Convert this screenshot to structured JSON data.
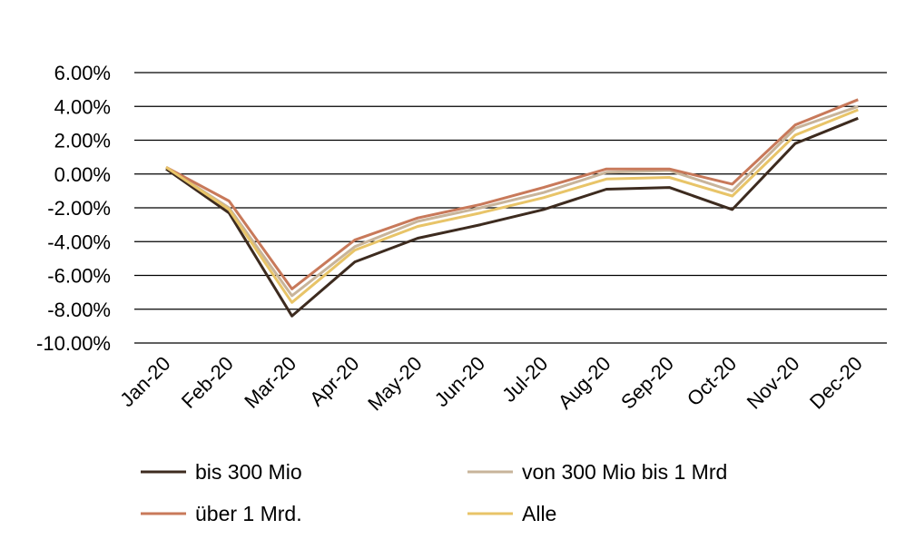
{
  "chart_data": {
    "type": "line",
    "categories": [
      "Jan-20",
      "Feb-20",
      "Mar-20",
      "Apr-20",
      "May-20",
      "Jun-20",
      "Jul-20",
      "Aug-20",
      "Sep-20",
      "Oct-20",
      "Nov-20",
      "Dec-20"
    ],
    "y_ticks": [
      6,
      4,
      2,
      0,
      -2,
      -4,
      -6,
      -8,
      -10
    ],
    "y_tick_labels": [
      "6.00%",
      "4.00%",
      "2.00%",
      "0.00%",
      "-2.00%",
      "-4.00%",
      "-6.00%",
      "-8.00%",
      "-10.00%"
    ],
    "ylim": [
      -10,
      6
    ],
    "grid": true,
    "legend_position": "bottom",
    "series": [
      {
        "name": "bis 300 Mio",
        "color": "#3d2b1f",
        "values": [
          0.3,
          -2.3,
          -8.4,
          -5.2,
          -3.8,
          -3.0,
          -2.1,
          -0.9,
          -0.8,
          -2.1,
          1.8,
          3.3
        ]
      },
      {
        "name": "von 300 Mio bis 1 Mrd",
        "color": "#c8b49a",
        "values": [
          0.4,
          -2.0,
          -7.2,
          -4.3,
          -2.8,
          -2.0,
          -1.1,
          0.1,
          0.2,
          -1.0,
          2.7,
          4.0
        ]
      },
      {
        "name": "über 1 Mrd.",
        "color": "#c8795a",
        "values": [
          0.4,
          -1.6,
          -6.8,
          -3.9,
          -2.6,
          -1.8,
          -0.8,
          0.3,
          0.3,
          -0.6,
          2.9,
          4.4
        ]
      },
      {
        "name": "Alle",
        "color": "#e8c468",
        "values": [
          0.4,
          -2.1,
          -7.6,
          -4.5,
          -3.1,
          -2.3,
          -1.4,
          -0.3,
          -0.2,
          -1.3,
          2.3,
          3.8
        ]
      }
    ]
  }
}
